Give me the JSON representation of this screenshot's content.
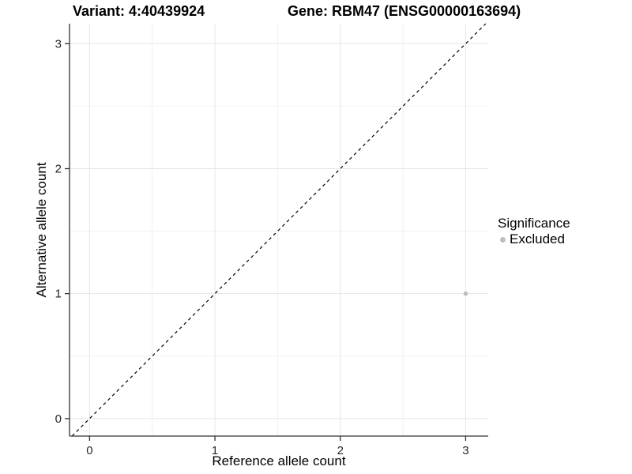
{
  "header": {
    "variant_title": "Variant: 4:40439924",
    "gene_title": "Gene: RBM47 (ENSG00000163694)"
  },
  "legend": {
    "title": "Significance",
    "position": "right",
    "entries": [
      {
        "label": "Excluded",
        "color": "#bebebe",
        "marker": "circle"
      }
    ]
  },
  "chart_data": {
    "type": "scatter",
    "title": "",
    "xlabel": "Reference allele count",
    "ylabel": "Alternative allele count",
    "xlim": [
      -0.16,
      3.18
    ],
    "ylim": [
      -0.14,
      3.16
    ],
    "xticks": [
      0,
      1,
      2,
      3
    ],
    "yticks": [
      0,
      1,
      2,
      3
    ],
    "xticks_minor": [
      0.5,
      1.5,
      2.5
    ],
    "yticks_minor": [
      0.5,
      1.5,
      2.5
    ],
    "grid": true,
    "series": [
      {
        "name": "Excluded",
        "color": "#bebebe",
        "points": [
          {
            "x": 3,
            "y": 1
          }
        ]
      }
    ],
    "reference_line": {
      "slope": 1,
      "intercept": 0,
      "style": "dashed",
      "color": "#000000"
    },
    "colors": {
      "panel_background": "#ffffff",
      "grid_major": "#e6e6e6",
      "grid_minor": "#f0f0f0",
      "axis_line": "#333333",
      "tick_label": "#262626",
      "point": "#bebebe"
    }
  }
}
